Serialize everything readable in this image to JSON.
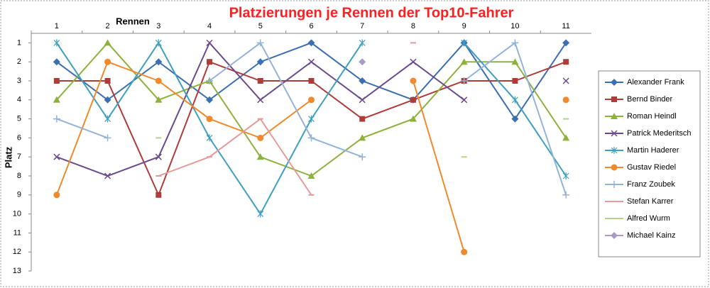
{
  "chart_data": {
    "type": "line",
    "title": "Platzierungen je Rennen der Top10-Fahrer",
    "x_label": "Rennen",
    "y_label": "Platz",
    "categories": [
      "1",
      "2",
      "3",
      "4",
      "5",
      "6",
      "7",
      "8",
      "9",
      "10",
      "11"
    ],
    "ylim": [
      0.5,
      13
    ],
    "y_reversed": true,
    "yticks": [
      1,
      2,
      3,
      4,
      5,
      6,
      7,
      8,
      9,
      10,
      11,
      12,
      13
    ],
    "grid": false,
    "legend": "right",
    "series": [
      {
        "name": "Alexander Frank",
        "color": "#3c6eb4",
        "marker": "diamond",
        "values": [
          2,
          4,
          2,
          4,
          2,
          1,
          3,
          4,
          1,
          5,
          1
        ]
      },
      {
        "name": "Bernd Binder",
        "color": "#b03c3a",
        "marker": "square",
        "values": [
          3,
          3,
          9,
          2,
          3,
          3,
          5,
          4,
          3,
          3,
          2
        ]
      },
      {
        "name": "Roman Heindl",
        "color": "#8db23c",
        "marker": "triangle",
        "values": [
          4,
          1,
          4,
          3,
          7,
          8,
          6,
          5,
          2,
          2,
          6
        ]
      },
      {
        "name": "Patrick Mederitsch",
        "color": "#6a4a8c",
        "marker": "x",
        "values": [
          7,
          8,
          7,
          1,
          4,
          2,
          4,
          2,
          4,
          null,
          3
        ]
      },
      {
        "name": "Martin Haderer",
        "color": "#3ca0be",
        "marker": "star",
        "values": [
          1,
          5,
          1,
          6,
          10,
          5,
          1,
          null,
          1,
          4,
          8
        ]
      },
      {
        "name": "Gustav Riedel",
        "color": "#f08a2c",
        "marker": "circle",
        "values": [
          9,
          2,
          3,
          5,
          6,
          4,
          null,
          3,
          12,
          null,
          4
        ]
      },
      {
        "name": "Franz Zoubek",
        "color": "#93b3d7",
        "marker": "plus",
        "values": [
          5,
          6,
          null,
          3,
          1,
          6,
          7,
          null,
          3,
          1,
          9
        ]
      },
      {
        "name": "Stefan Karrer",
        "color": "#e69a9a",
        "marker": "dash",
        "values": [
          null,
          null,
          8,
          7,
          5,
          9,
          null,
          1,
          null,
          null,
          null
        ]
      },
      {
        "name": "Alfred Wurm",
        "color": "#b4d28c",
        "marker": "dash",
        "values": [
          null,
          null,
          6,
          null,
          null,
          null,
          null,
          null,
          7,
          null,
          5
        ]
      },
      {
        "name": "Michael Kainz",
        "color": "#a99bc8",
        "marker": "diamond",
        "values": [
          null,
          null,
          null,
          null,
          null,
          null,
          2,
          null,
          null,
          null,
          null
        ]
      }
    ]
  }
}
